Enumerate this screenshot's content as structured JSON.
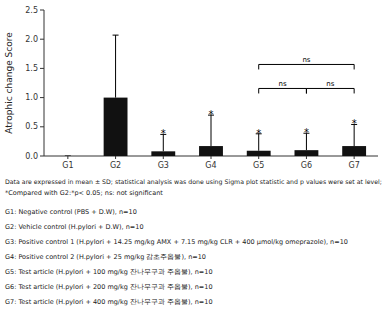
{
  "chart_data": {
    "type": "bar",
    "y_label": "Atrophic change Score",
    "categories": [
      "G1",
      "G2",
      "G3",
      "G4",
      "G5",
      "G6",
      "G7"
    ],
    "values": [
      0.0,
      1.0,
      0.08,
      0.17,
      0.09,
      0.1,
      0.17
    ],
    "errors": [
      0.0,
      1.07,
      0.29,
      0.53,
      0.29,
      0.29,
      0.37
    ],
    "color": "#111111",
    "ylim": [
      0.0,
      2.5
    ],
    "yticks": [
      {
        "value": 0.0,
        "label": "0.0"
      },
      0.5,
      {
        "value": 1.0,
        "label": "1.0"
      },
      1.5,
      {
        "value": 2.0,
        "label": "2.0"
      },
      2.5
    ],
    "grid": false,
    "annotations": [
      {
        "text": "*",
        "category": "G3"
      },
      {
        "text": "*",
        "category": "G4"
      },
      {
        "text": "*",
        "category": "G5"
      },
      {
        "text": "*",
        "category": "G6"
      },
      {
        "text": "*",
        "category": "G7"
      }
    ],
    "brackets": [
      {
        "text": "ns",
        "from": "G5",
        "to": "G6"
      },
      {
        "text": "ns",
        "from": "G6",
        "to": "G7"
      },
      {
        "text": "ns",
        "from": "G5",
        "to": "G7"
      }
    ],
    "footnotes": [
      "Data are expressed in mean ± SD; statistical analysis was done using Sigma plot statistic and p values were set at level;",
      "*Compared with G2:*p< 0.05; ns: not significant"
    ],
    "group_descriptions": [
      "G1: Negative control (PBS + D.W), n=10",
      "G2: Vehicle control (H.pylori + D.W), n=10",
      "G3: Positive control 1 (H.pylori + 14.25 mg/kg AMX + 7.15 mg/kg CLR + 400 μmol/kg omeprazole), n=10",
      "G4: Positive control 2 (H.pylori + 25 mg/kg 감초주옵물), n=10",
      "G5: Test article (H.pylori + 100 mg/kg 잔나무구과 주옵물), n=10",
      "G6: Test article (H.pylori + 200 mg/kg 잔나무구과 주옵물), n=10",
      "G7: Test article (H.pylori + 400 mg/kg 잔나무구과 주옵물), n=10"
    ]
  }
}
